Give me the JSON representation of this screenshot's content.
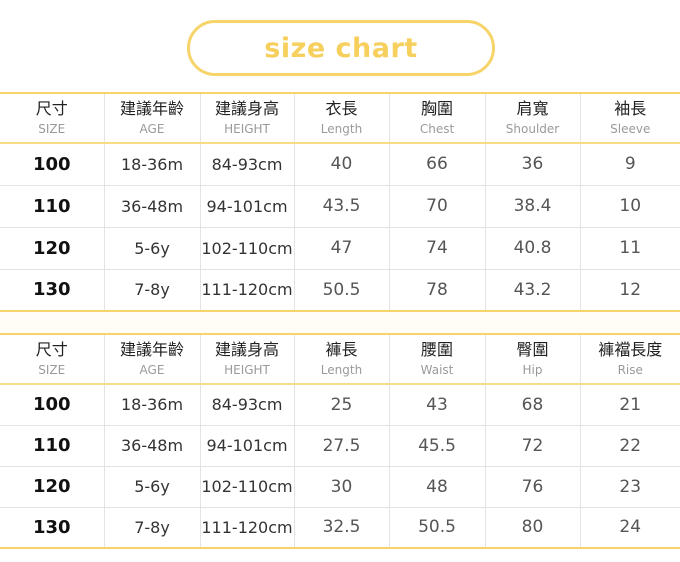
{
  "title": "size chart",
  "colors": {
    "accent": "#f6d46a",
    "gap_background": "#fffdf6"
  },
  "tops_table": {
    "headers": [
      {
        "zh": "尺寸",
        "en": "SIZE"
      },
      {
        "zh": "建議年齡",
        "en": "AGE"
      },
      {
        "zh": "建議身高",
        "en": "HEIGHT"
      },
      {
        "zh": "衣長",
        "en": "Length"
      },
      {
        "zh": "胸圍",
        "en": "Chest"
      },
      {
        "zh": "肩寬",
        "en": "Shoulder"
      },
      {
        "zh": "袖長",
        "en": "Sleeve"
      }
    ],
    "rows": [
      [
        "100",
        "18-36m",
        "84-93cm",
        "40",
        "66",
        "36",
        "9"
      ],
      [
        "110",
        "36-48m",
        "94-101cm",
        "43.5",
        "70",
        "38.4",
        "10"
      ],
      [
        "120",
        "5-6y",
        "102-110cm",
        "47",
        "74",
        "40.8",
        "11"
      ],
      [
        "130",
        "7-8y",
        "111-120cm",
        "50.5",
        "78",
        "43.2",
        "12"
      ]
    ]
  },
  "pants_table": {
    "headers": [
      {
        "zh": "尺寸",
        "en": "SIZE"
      },
      {
        "zh": "建議年齡",
        "en": "AGE"
      },
      {
        "zh": "建議身高",
        "en": "HEIGHT"
      },
      {
        "zh": "褲長",
        "en": "Length"
      },
      {
        "zh": "腰圍",
        "en": "Waist"
      },
      {
        "zh": "臀圍",
        "en": "Hip"
      },
      {
        "zh": "褲襠長度",
        "en": "Rise"
      }
    ],
    "rows": [
      [
        "100",
        "18-36m",
        "84-93cm",
        "25",
        "43",
        "68",
        "21"
      ],
      [
        "110",
        "36-48m",
        "94-101cm",
        "27.5",
        "45.5",
        "72",
        "22"
      ],
      [
        "120",
        "5-6y",
        "102-110cm",
        "30",
        "48",
        "76",
        "23"
      ],
      [
        "130",
        "7-8y",
        "111-120cm",
        "32.5",
        "50.5",
        "80",
        "24"
      ]
    ]
  }
}
